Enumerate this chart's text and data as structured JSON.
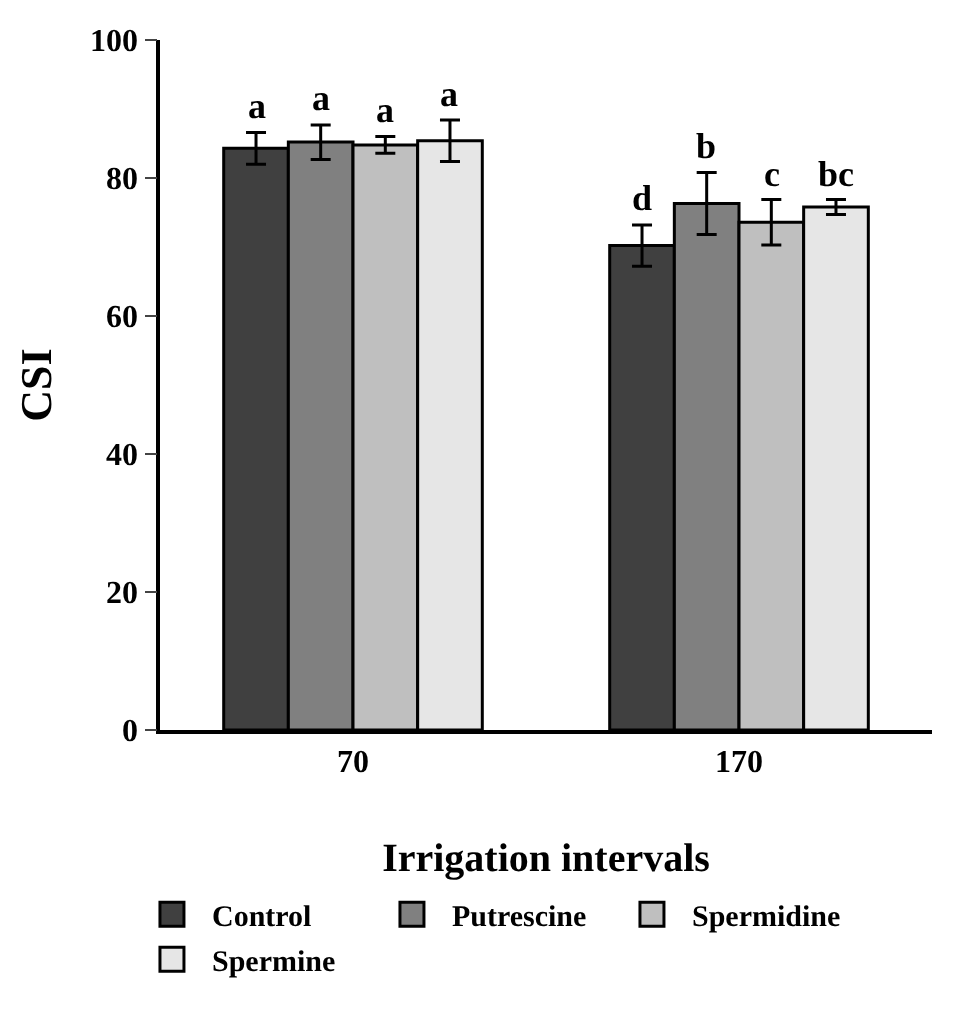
{
  "chart_data": {
    "type": "bar",
    "xlabel": "Irrigation intervals",
    "ylabel": "CSI",
    "categories": [
      "70",
      "170"
    ],
    "series": [
      {
        "name": "Control",
        "color": "#404040",
        "values": [
          84.3,
          70.2
        ],
        "errors": [
          2.3,
          3.0
        ],
        "value_labels": [
          "a",
          "d"
        ]
      },
      {
        "name": "Putrescine",
        "color": "#808080",
        "values": [
          85.2,
          76.3
        ],
        "errors": [
          2.5,
          4.5
        ],
        "value_labels": [
          "a",
          "b"
        ]
      },
      {
        "name": "Spermidine",
        "color": "#bfbfbf",
        "values": [
          84.8,
          73.6
        ],
        "errors": [
          1.2,
          3.3
        ],
        "value_labels": [
          "a",
          "c"
        ]
      },
      {
        "name": "Spermine",
        "color": "#e6e6e6",
        "values": [
          85.4,
          75.8
        ],
        "errors": [
          3.0,
          1.1
        ],
        "value_labels": [
          "a",
          "bc"
        ]
      }
    ],
    "ylim": [
      0,
      100
    ],
    "yticks": [
      0,
      20,
      40,
      60,
      80,
      100
    ],
    "grid": false,
    "legend": "bottom"
  }
}
